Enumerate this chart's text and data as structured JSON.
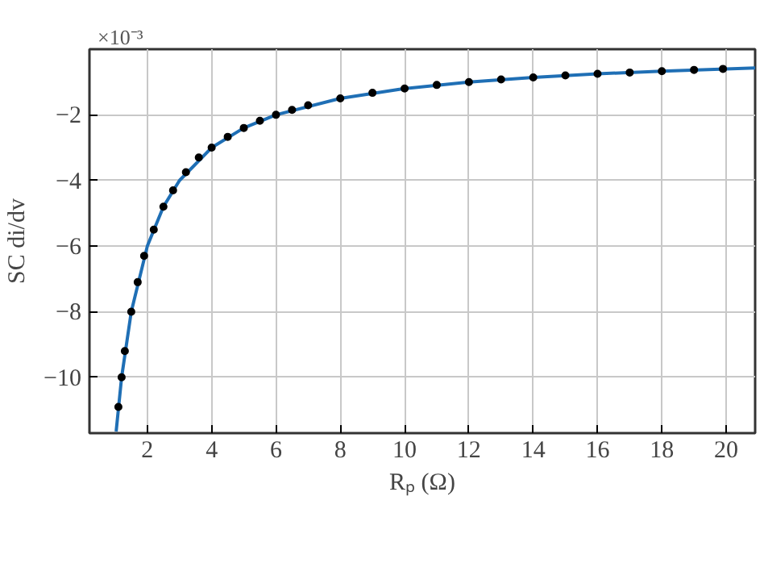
{
  "chart_data": {
    "type": "scatter",
    "xlabel": "Rₚ (Ω)",
    "ylabel": "SC di/dv",
    "annotations": [
      "×10⁻³"
    ],
    "xlim": [
      0.2,
      20.9
    ],
    "xticks": [
      2,
      4,
      6,
      8,
      10,
      12,
      14,
      16,
      18,
      20
    ],
    "ylim": [
      -11.7,
      0
    ],
    "yticks": [
      -10,
      -8,
      -6,
      -4,
      -2
    ],
    "grid": true,
    "series": [
      {
        "marker": "circle",
        "color": "#000000",
        "x": [
          1.1,
          1.2,
          1.3,
          1.5,
          1.7,
          1.9,
          2.2,
          2.5,
          2.8,
          3.2,
          3.6,
          4.0,
          4.5,
          5,
          5.5,
          6,
          6.5,
          7,
          8,
          9,
          10,
          11,
          12,
          13,
          14,
          15,
          16,
          17,
          18,
          19,
          19.9
        ],
        "values": [
          -10.9,
          -10.0,
          -9.2,
          -8.0,
          -7.1,
          -6.3,
          -5.5,
          -4.8,
          -4.3,
          -3.75,
          -3.3,
          -3.0,
          -2.67,
          -2.4,
          -2.18,
          -2.0,
          -1.85,
          -1.71,
          -1.5,
          -1.33,
          -1.2,
          -1.09,
          -1.0,
          -0.92,
          -0.86,
          -0.8,
          -0.75,
          -0.71,
          -0.67,
          -0.63,
          -0.6
        ]
      },
      {
        "type": "line",
        "color": "#1f6fb5",
        "x": [
          1.03,
          1.2,
          1.5,
          2,
          2.5,
          3,
          4,
          5,
          6,
          8,
          10,
          12,
          14,
          16,
          18,
          20.9
        ],
        "values": [
          -11.65,
          -10.0,
          -8.0,
          -6.0,
          -4.8,
          -4.0,
          -3.0,
          -2.4,
          -2.0,
          -1.5,
          -1.2,
          -1.0,
          -0.86,
          -0.75,
          -0.67,
          -0.57
        ]
      }
    ]
  }
}
